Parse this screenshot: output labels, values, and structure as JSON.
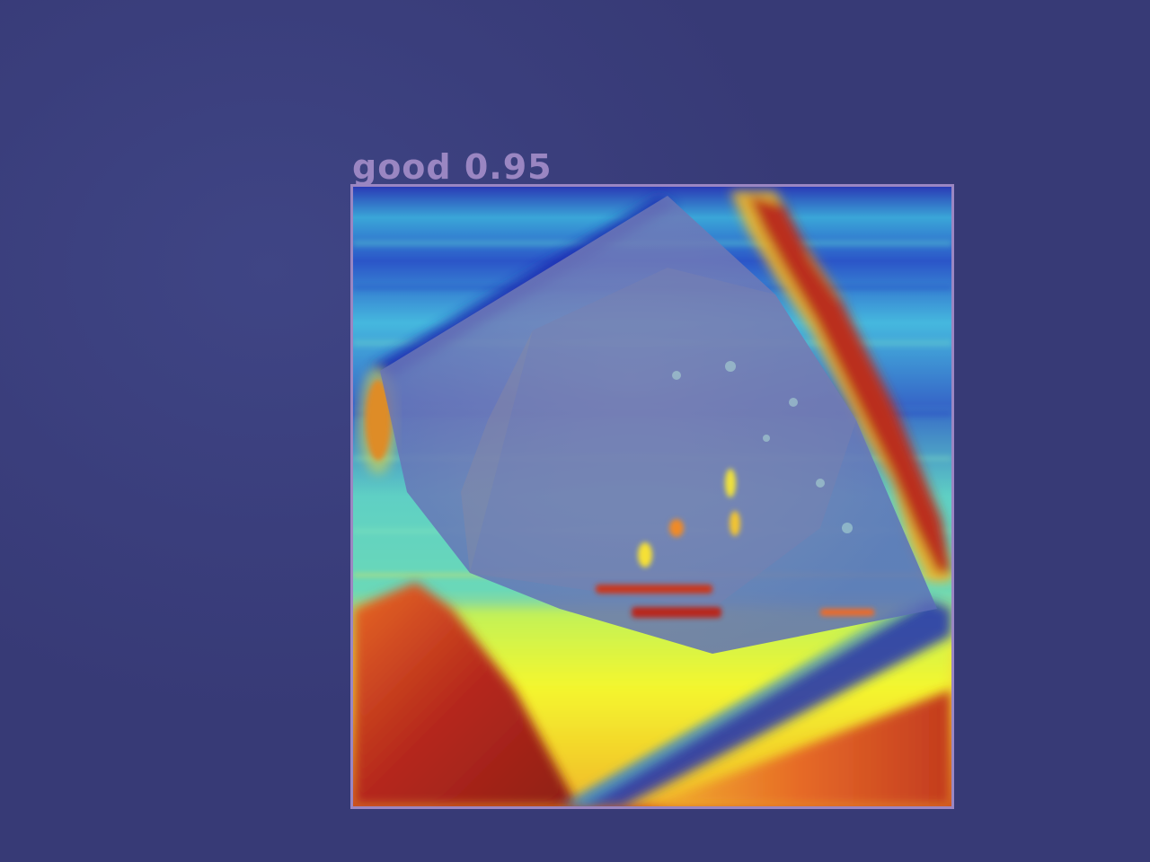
{
  "detection": {
    "label": "good 0.95",
    "box_color": "#9a86c2",
    "label_color": "#9a86c2"
  },
  "colors": {
    "background": "#3b3f7d",
    "heat_low": "#1d2fb8",
    "heat_mid": "#55d6c6",
    "heat_high": "#f6f230",
    "heat_peak": "#b8281c"
  }
}
